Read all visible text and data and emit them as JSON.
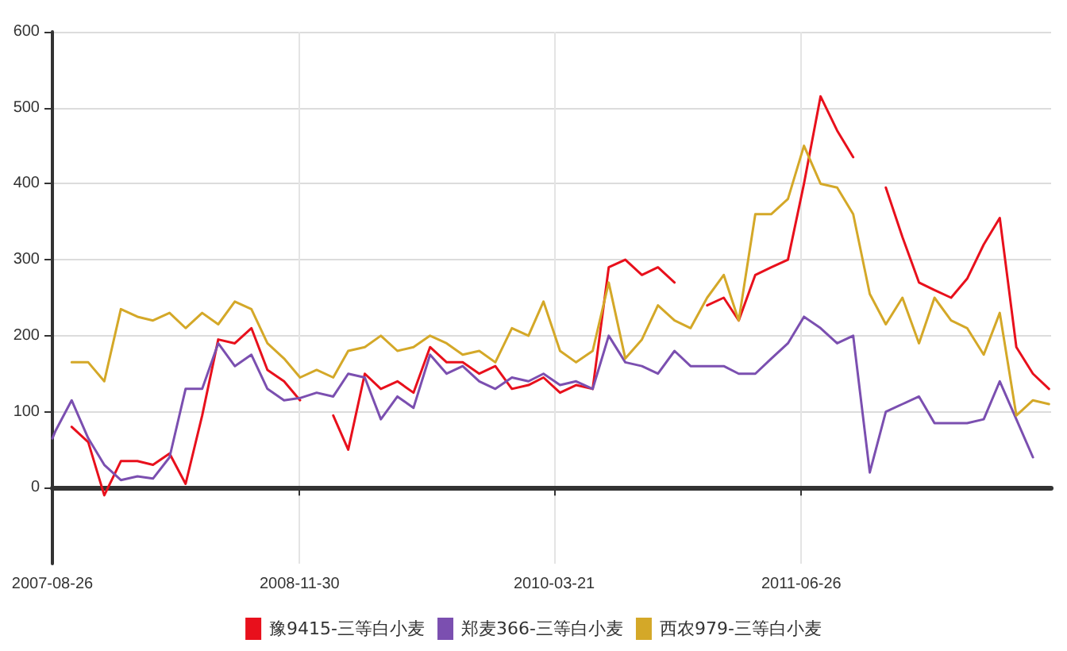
{
  "chart_data": {
    "type": "line",
    "x": [
      "2007-08-26",
      "2007-09-01",
      "2007-10-01",
      "2007-11-01",
      "2007-12-01",
      "2008-01-01",
      "2008-02-01",
      "2008-03-01",
      "2008-04-01",
      "2008-05-01",
      "2008-06-01",
      "2008-07-01",
      "2008-08-01",
      "2008-09-01",
      "2008-10-01",
      "2008-11-01",
      "2008-12-01",
      "2009-01-01",
      "2009-02-01",
      "2009-03-01",
      "2009-04-01",
      "2009-05-01",
      "2009-06-01",
      "2009-07-01",
      "2009-08-01",
      "2009-09-01",
      "2009-10-01",
      "2009-11-01",
      "2009-12-01",
      "2010-01-01",
      "2010-02-01",
      "2010-03-01",
      "2010-04-01",
      "2010-05-01",
      "2010-06-01",
      "2010-07-01",
      "2010-08-01",
      "2010-09-01",
      "2010-10-01",
      "2010-11-01",
      "2010-12-01",
      "2011-01-01",
      "2011-02-01",
      "2011-03-01",
      "2011-04-01",
      "2011-05-01",
      "2011-06-01",
      "2011-07-01",
      "2011-08-01",
      "2011-09-01",
      "2011-10-01",
      "2011-11-01",
      "2011-12-01",
      "2012-01-01",
      "2012-02-01",
      "2012-03-01",
      "2012-04-01",
      "2012-05-01",
      "2012-06-01",
      "2012-07-01",
      "2012-08-01",
      "2012-09-01",
      "2012-10-01"
    ],
    "series": [
      {
        "name": "豫9415-三等白小麦",
        "color": "#e8101c",
        "values": [
          null,
          null,
          80,
          60,
          -10,
          35,
          35,
          30,
          45,
          5,
          95,
          195,
          190,
          210,
          155,
          140,
          115,
          null,
          95,
          50,
          150,
          130,
          140,
          125,
          185,
          165,
          165,
          150,
          160,
          130,
          135,
          145,
          125,
          135,
          130,
          290,
          300,
          280,
          290,
          270,
          null,
          240,
          250,
          220,
          280,
          290,
          300,
          400,
          515,
          470,
          435,
          null,
          395,
          330,
          270,
          260,
          250,
          275,
          320,
          355,
          185,
          150,
          130
        ]
      },
      {
        "name": "郑麦366-三等白小麦",
        "color": "#7b4fb0",
        "values": [
          65,
          75,
          115,
          65,
          30,
          10,
          15,
          12,
          40,
          130,
          130,
          190,
          160,
          175,
          130,
          115,
          118,
          125,
          120,
          150,
          145,
          90,
          120,
          105,
          175,
          150,
          160,
          140,
          130,
          145,
          140,
          150,
          135,
          140,
          130,
          200,
          165,
          160,
          150,
          180,
          160,
          160,
          160,
          150,
          150,
          170,
          190,
          225,
          210,
          190,
          200,
          20,
          100,
          110,
          120,
          85,
          85,
          85,
          90,
          140,
          90,
          40,
          null
        ]
      },
      {
        "name": "西农979-三等白小麦",
        "color": "#d4a828",
        "values": [
          null,
          null,
          165,
          165,
          140,
          235,
          225,
          220,
          230,
          210,
          230,
          215,
          245,
          235,
          190,
          170,
          145,
          155,
          145,
          180,
          185,
          200,
          180,
          185,
          200,
          190,
          175,
          180,
          165,
          210,
          200,
          245,
          180,
          165,
          180,
          270,
          170,
          195,
          240,
          220,
          210,
          250,
          280,
          220,
          360,
          360,
          380,
          450,
          400,
          395,
          360,
          255,
          215,
          250,
          190,
          250,
          220,
          210,
          175,
          230,
          95,
          115,
          110
        ]
      }
    ],
    "xlim": [
      "2007-08-26",
      "2012-10-05"
    ],
    "xticks": [
      "2007-08-26",
      "2008-11-30",
      "2010-03-21",
      "2011-06-26"
    ],
    "ylim": [
      -100,
      600
    ],
    "yticks": [
      0,
      100,
      200,
      300,
      400,
      500,
      600
    ],
    "grid": true,
    "legend": "bottom",
    "marker": "none",
    "line_style": "solid"
  }
}
